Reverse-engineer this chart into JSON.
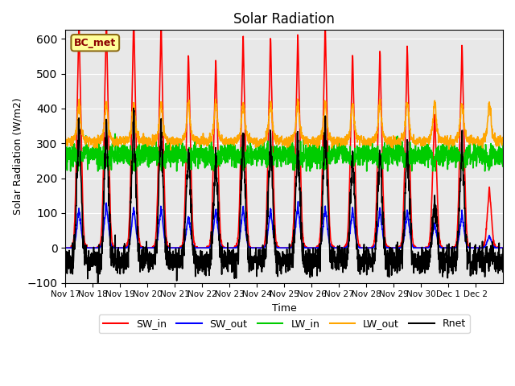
{
  "title": "Solar Radiation",
  "ylabel": "Solar Radiation (W/m2)",
  "xlabel": "Time",
  "station_label": "BC_met",
  "ylim": [
    -100,
    625
  ],
  "x_tick_labels": [
    "Nov 17",
    "Nov 18",
    "Nov 19",
    "Nov 20",
    "Nov 21",
    "Nov 22",
    "Nov 23",
    "Nov 24",
    "Nov 25",
    "Nov 26",
    "Nov 27",
    "Nov 28",
    "Nov 29",
    "Nov 30",
    "Dec 1",
    "Dec 2"
  ],
  "series": {
    "SW_in": {
      "color": "#FF0000",
      "lw": 1.2
    },
    "SW_out": {
      "color": "#0000FF",
      "lw": 1.2
    },
    "LW_in": {
      "color": "#00CC00",
      "lw": 1.2
    },
    "LW_out": {
      "color": "#FFA500",
      "lw": 1.2
    },
    "Rnet": {
      "color": "#000000",
      "lw": 1.2
    }
  },
  "background_color": "#E8E8E8",
  "fig_color": "#FFFFFF",
  "n_days": 16,
  "pts_per_day": 144,
  "SW_in_peaks": [
    560,
    570,
    575,
    560,
    480,
    470,
    525,
    525,
    530,
    555,
    480,
    490,
    500,
    335,
    505,
    150
  ],
  "SW_out_peaks": [
    95,
    110,
    100,
    100,
    80,
    95,
    100,
    95,
    105,
    100,
    95,
    95,
    90,
    60,
    85,
    30
  ],
  "LW_in_base": 270,
  "LW_out_base": 305
}
